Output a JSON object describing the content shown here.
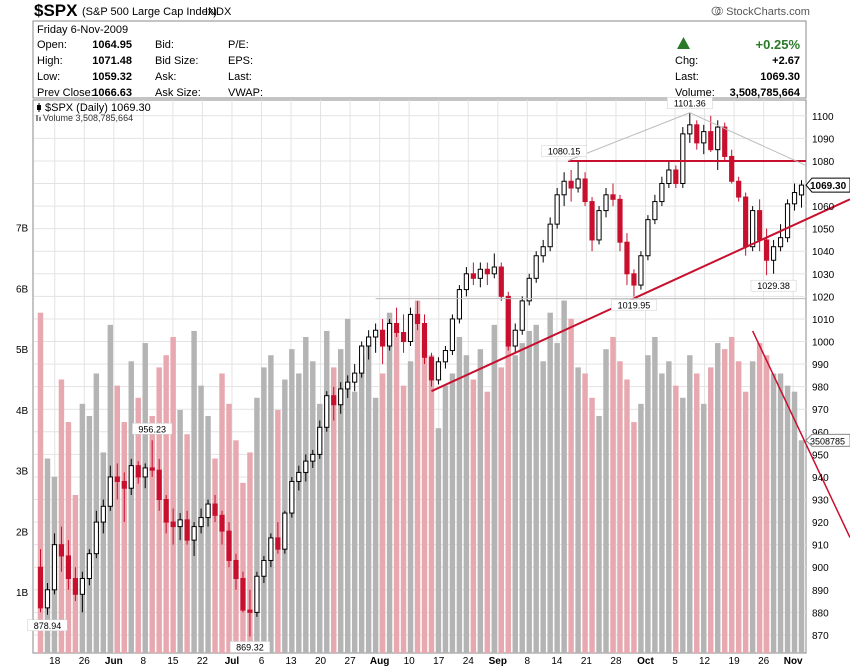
{
  "header": {
    "symbol": "$SPX",
    "name": "(S&P 500 Large Cap Index)",
    "exchange": "INDX",
    "source": "© StockCharts.com",
    "date": "Friday  6-Nov-2009",
    "left_labels": [
      "Open:",
      "High:",
      "Low:",
      "Prev Close:"
    ],
    "left_values": [
      "1064.95",
      "1071.48",
      "1059.32",
      "1066.63"
    ],
    "mid_labels": [
      "Bid:",
      "Bid Size:",
      "Ask:",
      "Ask Size:"
    ],
    "right_labels": [
      "P/E:",
      "EPS:",
      "Last:",
      "VWAP:"
    ],
    "change_pct": "+0.25%",
    "chg_label": "Chg:",
    "chg_value": "+2.67",
    "last_label": "Last:",
    "last_value": "1069.30",
    "volume_label": "Volume:",
    "volume_value": "3,508,785,664",
    "legend_price": "$SPX (Daily) 1069.30",
    "legend_volume": "Volume 3,508,785,664",
    "up_color": "#2a7a2a"
  },
  "chart_data": {
    "type": "candlestick",
    "y_axis": {
      "ticks": [
        "870",
        "880",
        "890",
        "900",
        "910",
        "920",
        "930",
        "940",
        "950",
        "960",
        "970",
        "980",
        "990",
        "1000",
        "1010",
        "1020",
        "1030",
        "1040",
        "1050",
        "1060",
        "1070",
        "1080",
        "1090",
        "1100"
      ],
      "range": [
        862,
        1107
      ]
    },
    "volume_axis": {
      "ticks": [
        "1B",
        "2B",
        "3B",
        "4B",
        "5B",
        "6B",
        "7B"
      ],
      "range_billions": [
        0,
        9.1
      ]
    },
    "x_tick_labels": [
      "18",
      "26",
      "Jun",
      "8",
      "15",
      "22",
      "Jul",
      "6",
      "13",
      "20",
      "27",
      "Aug",
      "10",
      "17",
      "24",
      "Sep",
      "8",
      "14",
      "21",
      "28",
      "Oct",
      "5",
      "12",
      "19",
      "26",
      "Nov"
    ],
    "price_tag": "1069.30",
    "volume_tag": "3508785",
    "annotations": [
      "956.23",
      "1101.36",
      "1080.15",
      "1019.95",
      "1029.38",
      "878.94",
      "869.32"
    ],
    "colors": {
      "up": "#000000",
      "down": "#c8102e",
      "vol_up": "#b4b4b4",
      "vol_down": "#e8a8b0",
      "trend": "#c8102e"
    },
    "candles": [
      [
        900,
        908,
        880,
        882
      ],
      [
        882,
        893,
        878.94,
        890
      ],
      [
        890,
        915,
        888,
        910
      ],
      [
        910,
        918,
        898,
        905
      ],
      [
        905,
        912,
        890,
        895
      ],
      [
        895,
        900,
        885,
        888
      ],
      [
        888,
        898,
        880,
        895
      ],
      [
        895,
        908,
        892,
        906
      ],
      [
        906,
        925,
        904,
        920
      ],
      [
        920,
        930,
        915,
        927
      ],
      [
        927,
        945,
        925,
        940
      ],
      [
        940,
        946,
        930,
        938
      ],
      [
        938,
        942,
        920,
        935
      ],
      [
        935,
        948,
        932,
        945
      ],
      [
        945,
        947,
        937,
        940
      ],
      [
        940,
        946,
        935,
        944
      ],
      [
        944,
        956.23,
        940,
        943
      ],
      [
        943,
        948,
        925,
        930
      ],
      [
        930,
        932,
        915,
        920
      ],
      [
        920,
        926,
        910,
        918
      ],
      [
        918,
        924,
        912,
        921
      ],
      [
        921,
        925,
        910,
        912
      ],
      [
        912,
        920,
        905,
        918
      ],
      [
        918,
        926,
        915,
        922
      ],
      [
        922,
        930,
        918,
        928
      ],
      [
        928,
        932,
        920,
        923
      ],
      [
        923,
        925,
        910,
        916
      ],
      [
        916,
        920,
        900,
        903
      ],
      [
        903,
        906,
        890,
        895
      ],
      [
        895,
        898,
        880,
        881
      ],
      [
        881,
        890,
        869.32,
        880
      ],
      [
        880,
        898,
        878,
        896
      ],
      [
        896,
        905,
        893,
        903
      ],
      [
        903,
        915,
        900,
        913
      ],
      [
        913,
        920,
        906,
        908
      ],
      [
        908,
        925,
        906,
        924
      ],
      [
        924,
        940,
        922,
        938
      ],
      [
        938,
        945,
        934,
        942
      ],
      [
        942,
        950,
        938,
        947
      ],
      [
        947,
        952,
        944,
        950
      ],
      [
        950,
        965,
        948,
        962
      ],
      [
        962,
        978,
        960,
        976
      ],
      [
        976,
        980,
        965,
        972
      ],
      [
        972,
        982,
        968,
        979
      ],
      [
        979,
        985,
        975,
        982
      ],
      [
        982,
        990,
        978,
        986
      ],
      [
        986,
        1000,
        984,
        998
      ],
      [
        998,
        1005,
        992,
        1002
      ],
      [
        1002,
        1008,
        995,
        1005
      ],
      [
        1005,
        1010,
        990,
        998
      ],
      [
        998,
        1010,
        996,
        1008
      ],
      [
        1008,
        1015,
        1002,
        1004
      ],
      [
        1004,
        1012,
        995,
        1000
      ],
      [
        1000,
        1015,
        998,
        1012
      ],
      [
        1012,
        1018,
        1005,
        1008
      ],
      [
        1008,
        1012,
        990,
        993
      ],
      [
        993,
        995,
        980,
        983
      ],
      [
        983,
        993,
        981,
        991
      ],
      [
        991,
        998,
        988,
        996
      ],
      [
        996,
        1012,
        994,
        1010
      ],
      [
        1010,
        1025,
        1008,
        1023
      ],
      [
        1023,
        1033,
        1020,
        1030
      ],
      [
        1030,
        1035,
        1025,
        1028
      ],
      [
        1028,
        1035,
        1024,
        1032
      ],
      [
        1032,
        1035,
        1025,
        1030
      ],
      [
        1030,
        1039,
        1028,
        1033
      ],
      [
        1033,
        1035,
        1018,
        1020
      ],
      [
        1020,
        1022,
        996,
        998
      ],
      [
        998,
        1008,
        995,
        1005
      ],
      [
        1005,
        1020,
        1003,
        1018
      ],
      [
        1018,
        1030,
        1016,
        1028
      ],
      [
        1028,
        1040,
        1026,
        1038
      ],
      [
        1038,
        1045,
        1035,
        1042
      ],
      [
        1042,
        1055,
        1040,
        1052
      ],
      [
        1052,
        1068,
        1050,
        1065
      ],
      [
        1065,
        1075,
        1060,
        1071
      ],
      [
        1071,
        1076,
        1062,
        1068
      ],
      [
        1068,
        1080.15,
        1066,
        1072
      ],
      [
        1072,
        1075,
        1060,
        1062
      ],
      [
        1062,
        1064,
        1040,
        1045
      ],
      [
        1045,
        1060,
        1043,
        1058
      ],
      [
        1058,
        1068,
        1055,
        1065
      ],
      [
        1065,
        1070,
        1060,
        1063
      ],
      [
        1063,
        1065,
        1040,
        1044
      ],
      [
        1044,
        1048,
        1025,
        1030
      ],
      [
        1030,
        1032,
        1019.95,
        1025
      ],
      [
        1025,
        1040,
        1023,
        1038
      ],
      [
        1038,
        1056,
        1036,
        1054
      ],
      [
        1054,
        1065,
        1052,
        1062
      ],
      [
        1062,
        1073,
        1060,
        1070
      ],
      [
        1070,
        1080,
        1068,
        1076
      ],
      [
        1076,
        1078,
        1068,
        1070
      ],
      [
        1070,
        1095,
        1068,
        1092
      ],
      [
        1092,
        1101.36,
        1088,
        1096
      ],
      [
        1096,
        1098,
        1085,
        1088
      ],
      [
        1088,
        1096,
        1083,
        1093
      ],
      [
        1093,
        1100,
        1084,
        1085
      ],
      [
        1085,
        1098,
        1076,
        1095
      ],
      [
        1095,
        1097,
        1080,
        1082
      ],
      [
        1082,
        1085,
        1070,
        1071
      ],
      [
        1071,
        1073,
        1062,
        1064
      ],
      [
        1064,
        1066,
        1038,
        1042
      ],
      [
        1042,
        1060,
        1040,
        1058
      ],
      [
        1058,
        1063,
        1040,
        1045
      ],
      [
        1045,
        1050,
        1029.38,
        1036
      ],
      [
        1036,
        1045,
        1030,
        1042
      ],
      [
        1042,
        1052,
        1040,
        1046
      ],
      [
        1046,
        1063,
        1044,
        1061
      ],
      [
        1061,
        1070,
        1058,
        1066
      ],
      [
        1064.95,
        1071.48,
        1059.32,
        1069.3
      ]
    ],
    "volumes": [
      5.6,
      3.2,
      2.9,
      4.5,
      3.8,
      2.6,
      4.1,
      3.9,
      4.6,
      3.3,
      5.4,
      4.4,
      3.8,
      4.8,
      4.2,
      5.1,
      3.9,
      4.7,
      4.9,
      5.2,
      4.0,
      3.6,
      5.3,
      4.4,
      3.9,
      3.2,
      4.6,
      4.1,
      3.5,
      2.8,
      3.3,
      4.2,
      4.7,
      4.9,
      4.0,
      4.5,
      5.0,
      4.6,
      5.2,
      4.8,
      4.1,
      5.3,
      4.7,
      5.0,
      5.5,
      4.3,
      4.9,
      5.1,
      4.2,
      4.6,
      5.6,
      5.3,
      4.4,
      4.8,
      5.8,
      5.1,
      4.9,
      3.7,
      4.4,
      4.6,
      5.2,
      4.9,
      4.5,
      5.0,
      4.3,
      5.4,
      4.7,
      5.8,
      4.9,
      5.1,
      5.3,
      5.4,
      4.8,
      5.6,
      5.1,
      5.8,
      5.5,
      4.7,
      4.6,
      4.2,
      3.9,
      5.0,
      5.2,
      4.8,
      4.5,
      3.8,
      4.1,
      4.9,
      5.2,
      4.6,
      4.8,
      4.4,
      4.2,
      4.9,
      4.6,
      4.1,
      4.7,
      5.1,
      5.0,
      5.2,
      4.8,
      4.3,
      4.8,
      5.1,
      4.9,
      4.6,
      4.6,
      4.4,
      4.3,
      3.5
    ]
  }
}
